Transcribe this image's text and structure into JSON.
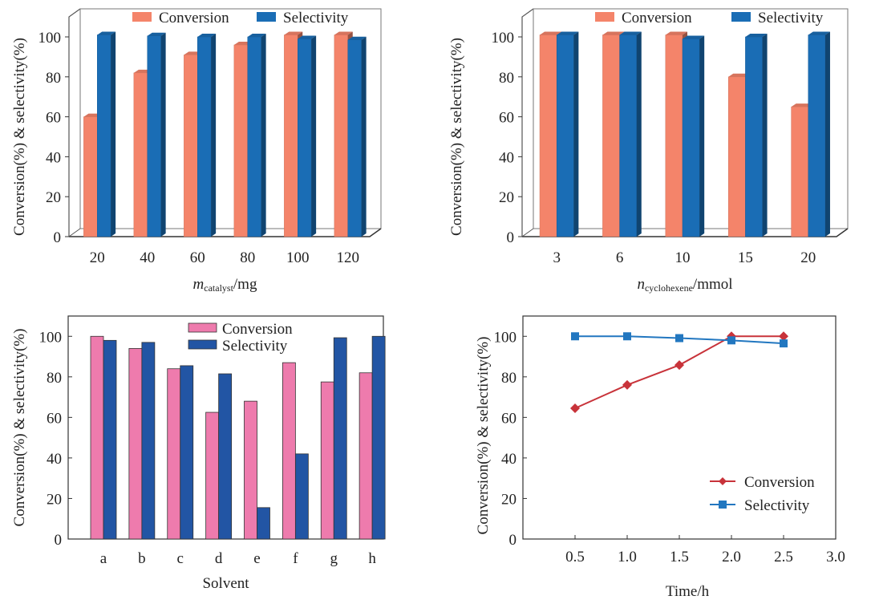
{
  "chart_data": [
    {
      "id": "catalyst",
      "type": "bar",
      "style": "3d",
      "title": "",
      "categories": [
        "20",
        "40",
        "60",
        "80",
        "100",
        "120"
      ],
      "series": [
        {
          "name": "Conversion",
          "values": [
            60,
            82,
            91,
            96,
            101,
            101
          ],
          "color": "#f4846a"
        },
        {
          "name": "Selectivity",
          "values": [
            101,
            100.5,
            100,
            100,
            99,
            98.5
          ],
          "color": "#1a6db5"
        }
      ],
      "xlabel_main": "m",
      "xlabel_sub": "catalyst",
      "xlabel_unit": "/mg",
      "ylabel": "Conversion(%) & selectivity(%)",
      "ylim": [
        0,
        100
      ],
      "yticks": [
        "0",
        "20",
        "40",
        "60",
        "80",
        "100"
      ],
      "legend": "top"
    },
    {
      "id": "cyclohexene",
      "type": "bar",
      "style": "3d",
      "title": "",
      "categories": [
        "3",
        "6",
        "10",
        "15",
        "20"
      ],
      "series": [
        {
          "name": "Conversion",
          "values": [
            101,
            101,
            101,
            80,
            65
          ],
          "color": "#f4846a"
        },
        {
          "name": "Selectivity",
          "values": [
            101,
            101,
            99,
            100,
            101
          ],
          "color": "#1a6db5"
        }
      ],
      "xlabel_main": "n",
      "xlabel_sub": "cyclohexene",
      "xlabel_unit": "/mmol",
      "ylabel": "Conversion(%) & selectivity(%)",
      "ylim": [
        0,
        100
      ],
      "yticks": [
        "0",
        "20",
        "40",
        "60",
        "80",
        "100"
      ],
      "legend": "top"
    },
    {
      "id": "solvent",
      "type": "bar",
      "style": "flat",
      "title": "",
      "categories": [
        "a",
        "b",
        "c",
        "d",
        "e",
        "f",
        "g",
        "h"
      ],
      "series": [
        {
          "name": "Conversion",
          "values": [
            100,
            94,
            84,
            62.5,
            68,
            87,
            77.5,
            82
          ],
          "color": "#ee7bad"
        },
        {
          "name": "Selectivity",
          "values": [
            98,
            97,
            85.5,
            81.5,
            15.5,
            42,
            99.3,
            100
          ],
          "color": "#2255a4"
        }
      ],
      "xlabel": "Solvent",
      "ylabel": "Conversion(%) & selectivity(%)",
      "ylim": [
        0,
        110
      ],
      "yticks": [
        "0",
        "20",
        "40",
        "60",
        "80",
        "100"
      ],
      "legend": "top-center"
    },
    {
      "id": "time",
      "type": "line",
      "title": "",
      "x": [
        0.5,
        1.0,
        1.5,
        2.0,
        2.5
      ],
      "xticks": [
        "0.5",
        "1.0",
        "1.5",
        "2.0",
        "2.5",
        "3.0"
      ],
      "xlim": [
        0,
        3.0
      ],
      "series": [
        {
          "name": "Conversion",
          "values": [
            64.5,
            76,
            85.8,
            100,
            100
          ],
          "color": "#c8333a",
          "marker": "diamond"
        },
        {
          "name": "Selectivity",
          "values": [
            100,
            100,
            99.1,
            98,
            96.5
          ],
          "color": "#2277c0",
          "marker": "square"
        }
      ],
      "xlabel": "Time/h",
      "ylabel": "Conversion(%) & selectivity(%)",
      "ylim": [
        0,
        110
      ],
      "yticks": [
        "0",
        "20",
        "40",
        "60",
        "80",
        "100"
      ],
      "legend": "bottom-right"
    }
  ]
}
